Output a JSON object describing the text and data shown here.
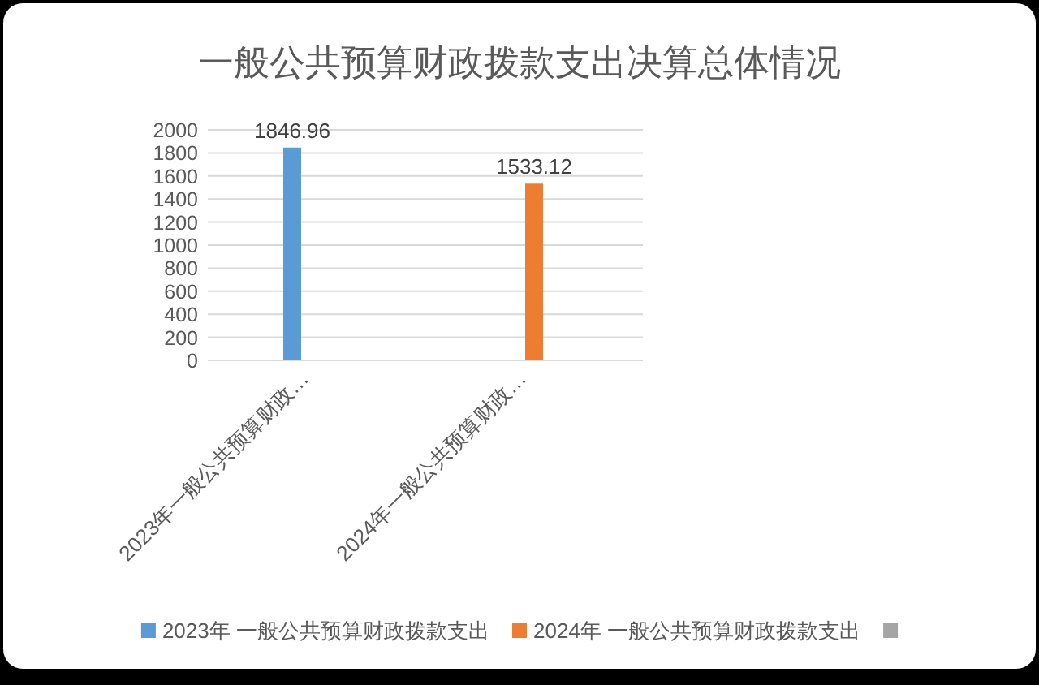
{
  "chart_data": {
    "type": "bar",
    "title": "一般公共预算财政拨款支出决算总体情况",
    "categories": [
      "2023年一般公共预算财政…",
      "2024年一般公共预算财政…"
    ],
    "series": [
      {
        "name": "2023年 一般公共预算财政拨款支出",
        "color": "#5b9bd5",
        "values": [
          1846.96,
          null
        ]
      },
      {
        "name": "2024年 一般公共预算财政拨款支出",
        "color": "#ed7d31",
        "values": [
          null,
          1533.12
        ]
      },
      {
        "color": "#a5a5a5",
        "values": [
          null,
          null
        ]
      }
    ],
    "ylim": [
      0,
      2000
    ],
    "yticks": [
      0,
      200,
      400,
      600,
      800,
      1000,
      1200,
      1400,
      1600,
      1800,
      2000
    ],
    "grid": "y",
    "legend": "bottom",
    "data_labels": true
  }
}
